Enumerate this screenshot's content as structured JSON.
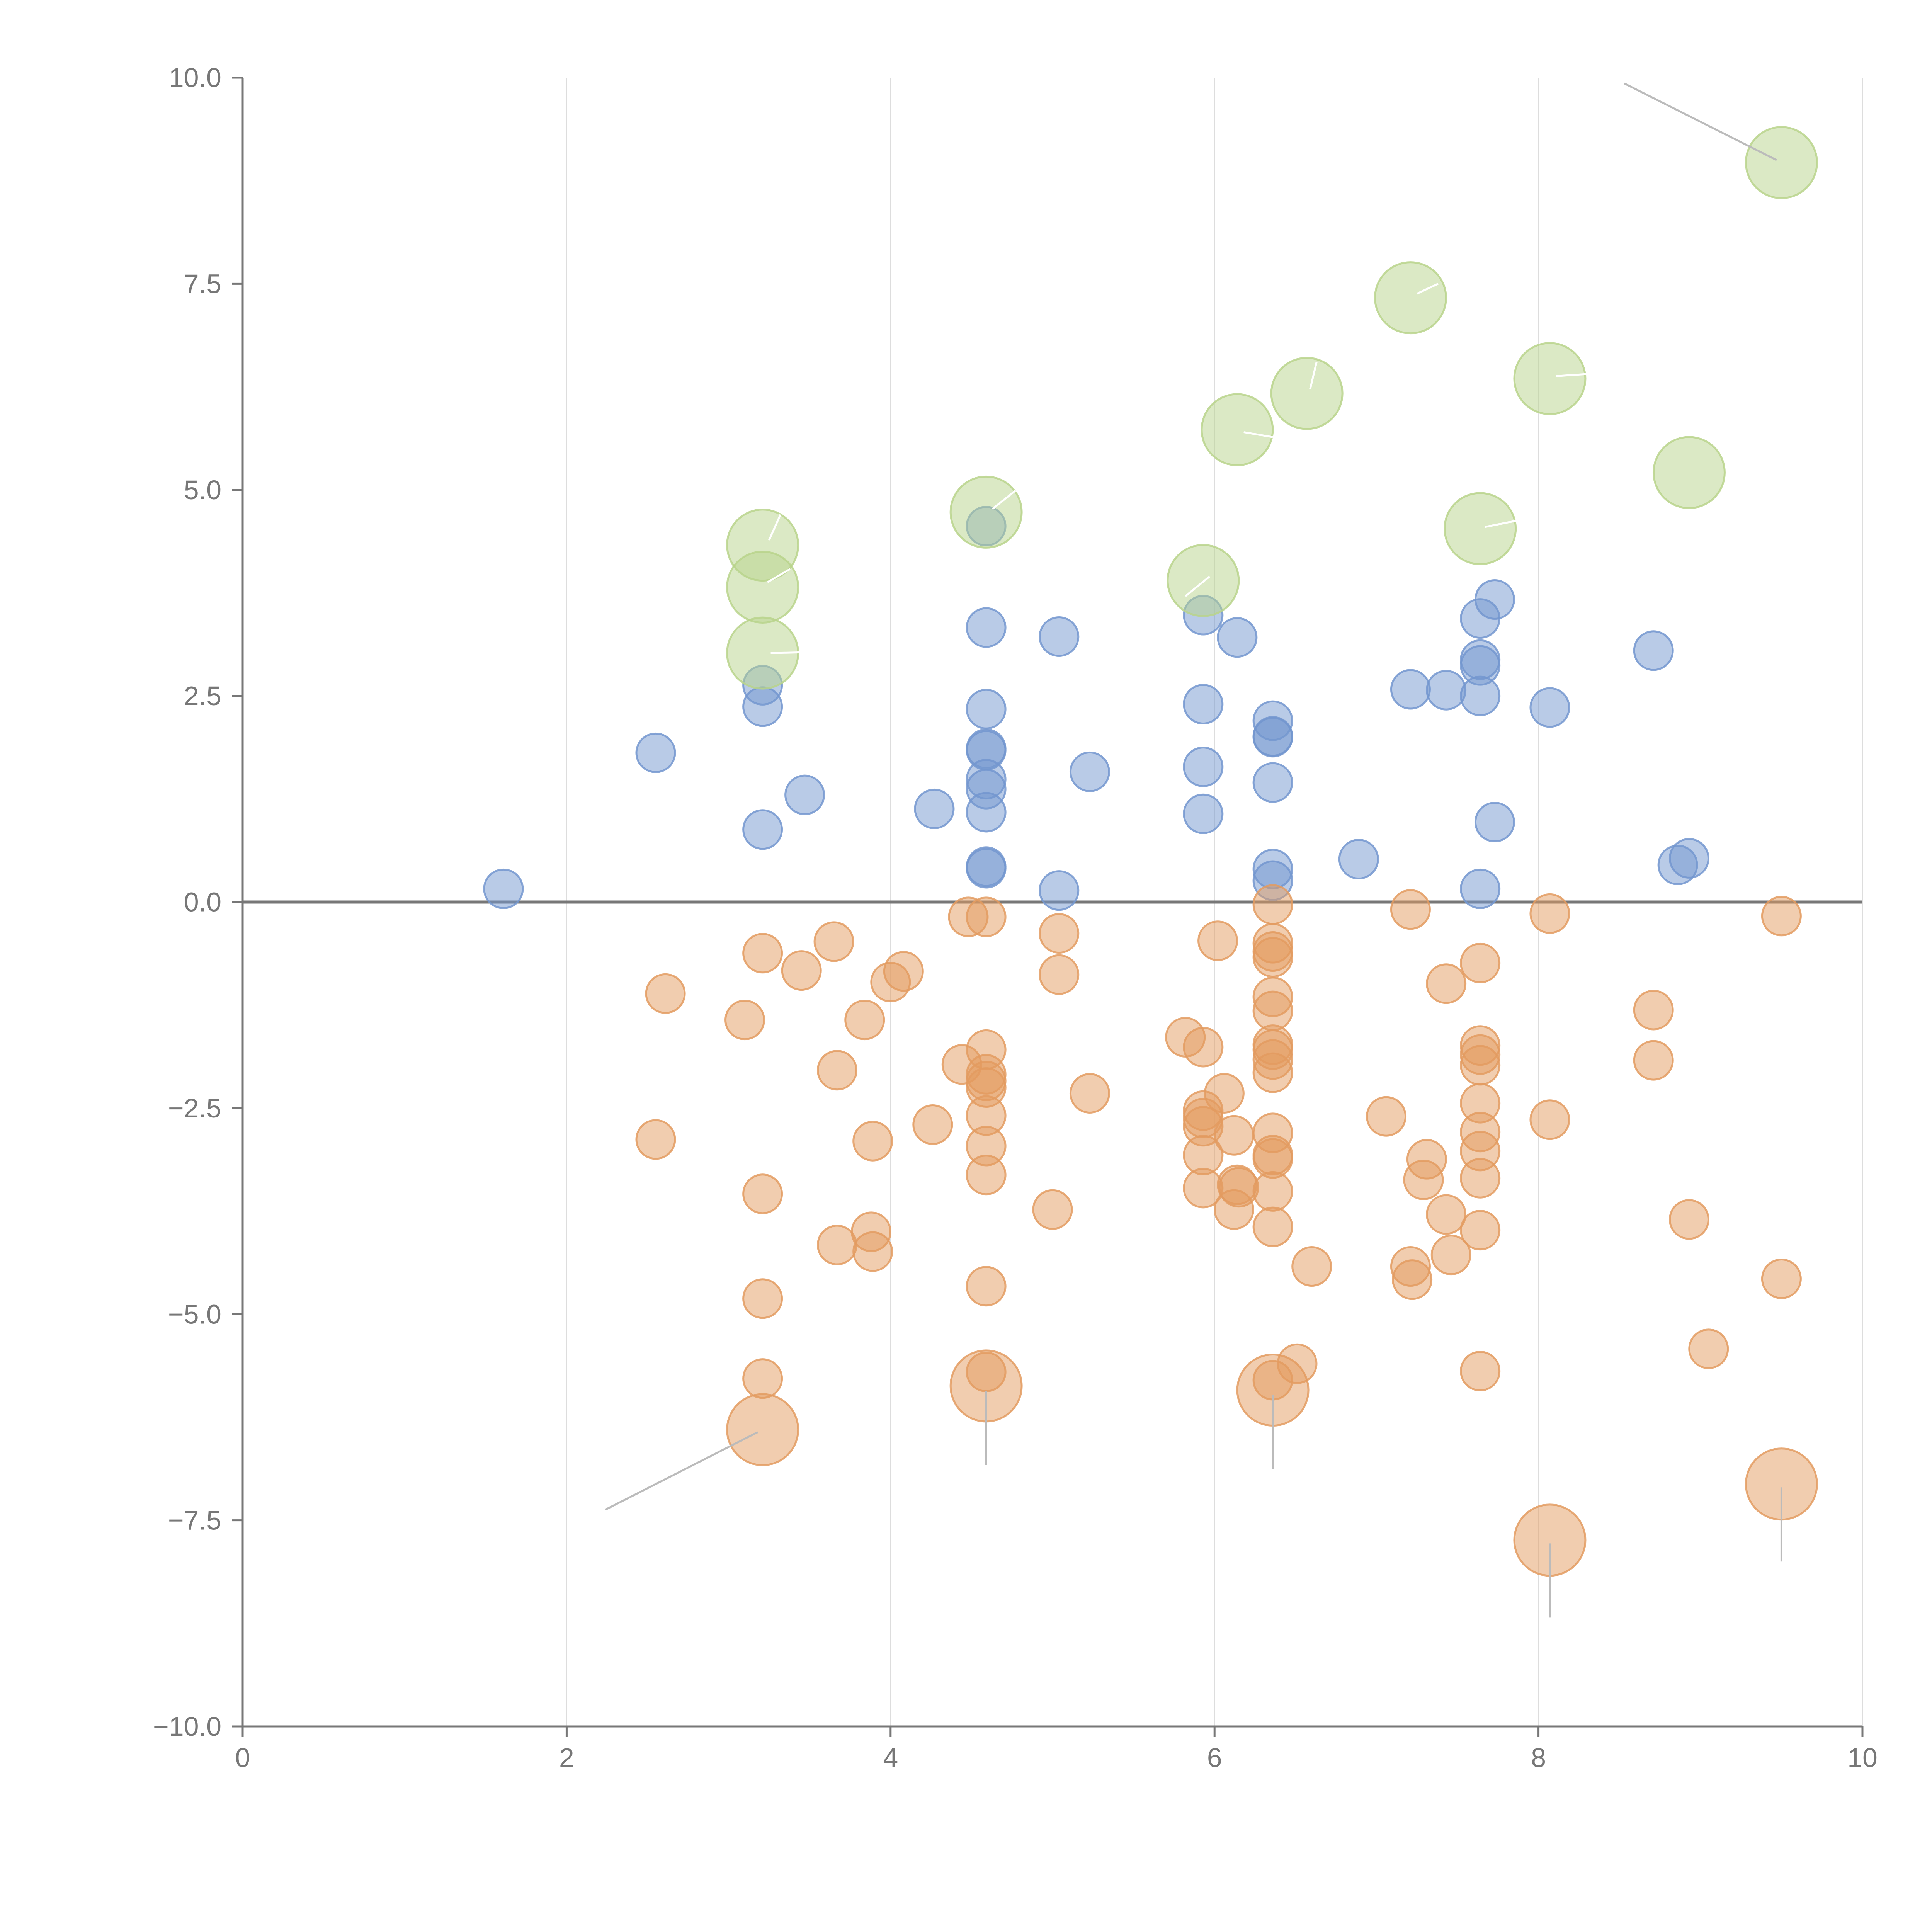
{
  "chart_data": {
    "type": "scatter",
    "title": "",
    "xlabel": "",
    "ylabel": "",
    "xlim": [
      0,
      10
    ],
    "ylim": [
      -10,
      10
    ],
    "x_ticks": [
      0,
      2,
      4,
      6,
      8,
      10
    ],
    "x_tick_labels": [
      "0",
      "2",
      "4",
      "6",
      "8",
      "10"
    ],
    "y_ticks": [
      10,
      7.5,
      5,
      2.5,
      0,
      -2.5,
      -5,
      -7.5,
      -10
    ],
    "y_tick_labels": [
      "10.0",
      "7.5",
      "5.0",
      "2.5",
      "0.0",
      "−2.5",
      "−5.0",
      "−7.5",
      "−10.0"
    ],
    "vertical_grid": true,
    "zero_line": true,
    "legend": "none",
    "series": [
      {
        "name": "blue",
        "color": "#7397cf",
        "size": "small",
        "points": [
          [
            1.61,
            0.16
          ],
          [
            2.55,
            1.81
          ],
          [
            3.21,
            2.63
          ],
          [
            3.21,
            2.37
          ],
          [
            3.21,
            0.88
          ],
          [
            3.47,
            1.3
          ],
          [
            4.27,
            1.13
          ],
          [
            4.59,
            3.33
          ],
          [
            4.59,
            2.34
          ],
          [
            4.59,
            1.86
          ],
          [
            4.59,
            1.84
          ],
          [
            4.59,
            1.49
          ],
          [
            4.59,
            1.37
          ],
          [
            4.59,
            1.09
          ],
          [
            4.59,
            0.43
          ],
          [
            4.59,
            0.41
          ],
          [
            4.59,
            4.56
          ],
          [
            5.04,
            3.22
          ],
          [
            5.04,
            0.14
          ],
          [
            5.23,
            1.58
          ],
          [
            5.93,
            3.48
          ],
          [
            5.93,
            2.4
          ],
          [
            5.93,
            1.64
          ],
          [
            5.93,
            1.07
          ],
          [
            6.14,
            3.21
          ],
          [
            6.36,
            2.2
          ],
          [
            6.36,
            2.01
          ],
          [
            6.36,
            2.0
          ],
          [
            6.36,
            1.45
          ],
          [
            6.36,
            0.4
          ],
          [
            6.36,
            0.26
          ],
          [
            6.89,
            0.52
          ],
          [
            7.21,
            2.58
          ],
          [
            7.43,
            2.57
          ],
          [
            7.64,
            3.44
          ],
          [
            7.64,
            2.94
          ],
          [
            7.64,
            2.87
          ],
          [
            7.64,
            2.5
          ],
          [
            7.64,
            0.16
          ],
          [
            7.73,
            3.67
          ],
          [
            7.73,
            0.97
          ],
          [
            8.07,
            2.36
          ],
          [
            8.71,
            3.05
          ],
          [
            8.86,
            0.45
          ],
          [
            8.93,
            0.53
          ]
        ]
      },
      {
        "name": "orange",
        "color": "#e39b60",
        "size": "small",
        "points": [
          [
            2.55,
            -2.88
          ],
          [
            2.61,
            -1.11
          ],
          [
            3.1,
            -1.43
          ],
          [
            3.21,
            -0.62
          ],
          [
            3.21,
            -3.54
          ],
          [
            3.21,
            -4.81
          ],
          [
            3.21,
            -5.78
          ],
          [
            3.45,
            -0.83
          ],
          [
            3.65,
            -0.48
          ],
          [
            3.67,
            -2.04
          ],
          [
            3.67,
            -4.16
          ],
          [
            3.84,
            -1.43
          ],
          [
            3.88,
            -4.0
          ],
          [
            3.89,
            -2.9
          ],
          [
            3.89,
            -4.24
          ],
          [
            4.0,
            -0.97
          ],
          [
            4.08,
            -0.84
          ],
          [
            4.26,
            -2.7
          ],
          [
            4.44,
            -1.97
          ],
          [
            4.48,
            -0.18
          ],
          [
            4.59,
            -0.18
          ],
          [
            4.59,
            -1.79
          ],
          [
            4.59,
            -2.09
          ],
          [
            4.59,
            -2.17
          ],
          [
            4.59,
            -2.25
          ],
          [
            4.59,
            -2.59
          ],
          [
            4.59,
            -2.96
          ],
          [
            4.59,
            -3.31
          ],
          [
            4.59,
            -4.66
          ],
          [
            4.59,
            -5.7
          ],
          [
            5.0,
            -3.73
          ],
          [
            5.04,
            -0.38
          ],
          [
            5.04,
            -0.88
          ],
          [
            5.23,
            -2.32
          ],
          [
            5.82,
            -1.64
          ],
          [
            5.93,
            -1.76
          ],
          [
            5.93,
            -2.53
          ],
          [
            5.93,
            -2.62
          ],
          [
            5.93,
            -2.72
          ],
          [
            5.93,
            -3.07
          ],
          [
            5.93,
            -3.47
          ],
          [
            6.02,
            -0.47
          ],
          [
            6.06,
            -2.32
          ],
          [
            6.12,
            -2.83
          ],
          [
            6.12,
            -3.73
          ],
          [
            6.14,
            -3.43
          ],
          [
            6.15,
            -3.46
          ],
          [
            6.36,
            -0.03
          ],
          [
            6.36,
            -0.5
          ],
          [
            6.36,
            -0.6
          ],
          [
            6.36,
            -0.67
          ],
          [
            6.36,
            -1.15
          ],
          [
            6.36,
            -1.32
          ],
          [
            6.36,
            -1.73
          ],
          [
            6.36,
            -1.79
          ],
          [
            6.36,
            -1.91
          ],
          [
            6.36,
            -2.07
          ],
          [
            6.36,
            -2.8
          ],
          [
            6.36,
            -3.07
          ],
          [
            6.36,
            -3.11
          ],
          [
            6.36,
            -3.51
          ],
          [
            6.36,
            -3.94
          ],
          [
            6.36,
            -5.8
          ],
          [
            6.51,
            -5.6
          ],
          [
            6.6,
            -4.42
          ],
          [
            7.06,
            -2.6
          ],
          [
            7.21,
            -0.09
          ],
          [
            7.21,
            -4.42
          ],
          [
            7.22,
            -4.58
          ],
          [
            7.29,
            -3.37
          ],
          [
            7.31,
            -3.12
          ],
          [
            7.43,
            -0.99
          ],
          [
            7.43,
            -3.79
          ],
          [
            7.46,
            -4.28
          ],
          [
            7.64,
            -0.74
          ],
          [
            7.64,
            -1.74
          ],
          [
            7.64,
            -1.85
          ],
          [
            7.64,
            -1.98
          ],
          [
            7.64,
            -2.44
          ],
          [
            7.64,
            -2.79
          ],
          [
            7.64,
            -3.02
          ],
          [
            7.64,
            -3.35
          ],
          [
            7.64,
            -3.98
          ],
          [
            7.64,
            -5.69
          ],
          [
            8.07,
            -0.14
          ],
          [
            8.07,
            -2.64
          ],
          [
            8.71,
            -1.31
          ],
          [
            8.71,
            -1.92
          ],
          [
            8.93,
            -3.85
          ],
          [
            9.05,
            -5.42
          ],
          [
            9.5,
            -0.17
          ],
          [
            9.5,
            -4.57
          ]
        ]
      },
      {
        "name": "green-large",
        "color": "#b8d38b",
        "size": "large",
        "points": [
          [
            3.21,
            4.33
          ],
          [
            3.21,
            3.82
          ],
          [
            3.21,
            3.02
          ],
          [
            4.59,
            4.73
          ],
          [
            5.93,
            3.9
          ],
          [
            6.14,
            5.73
          ],
          [
            6.57,
            6.17
          ],
          [
            7.21,
            7.33
          ],
          [
            7.64,
            4.53
          ],
          [
            8.07,
            6.35
          ],
          [
            8.93,
            5.21
          ],
          [
            9.5,
            8.97
          ]
        ]
      },
      {
        "name": "orange-large",
        "color": "#e39b60",
        "size": "large",
        "points": [
          [
            3.21,
            -6.4
          ],
          [
            4.59,
            -5.87
          ],
          [
            6.36,
            -5.92
          ],
          [
            8.07,
            -7.74
          ],
          [
            9.5,
            -7.06
          ]
        ]
      }
    ],
    "annotation_lines": [
      {
        "color": "#bbbbbb",
        "from": [
          8.53,
          9.93
        ],
        "to": [
          9.47,
          9.0
        ]
      },
      {
        "color": "#bbbbbb",
        "from": [
          2.24,
          -7.37
        ],
        "to": [
          3.18,
          -6.43
        ]
      },
      {
        "color": "#bbbbbb",
        "from": [
          4.59,
          -5.93
        ],
        "to": [
          4.59,
          -6.83
        ]
      },
      {
        "color": "#bbbbbb",
        "from": [
          6.36,
          -5.98
        ],
        "to": [
          6.36,
          -6.88
        ]
      },
      {
        "color": "#bbbbbb",
        "from": [
          8.07,
          -7.78
        ],
        "to": [
          8.07,
          -8.68
        ]
      },
      {
        "color": "#bbbbbb",
        "from": [
          9.5,
          -7.1
        ],
        "to": [
          9.5,
          -8.0
        ]
      },
      {
        "color": "#ffffff",
        "from": [
          3.25,
          4.39
        ],
        "to": [
          3.32,
          4.7
        ]
      },
      {
        "color": "#ffffff",
        "from": [
          3.24,
          3.88
        ],
        "to": [
          3.38,
          4.04
        ]
      },
      {
        "color": "#ffffff",
        "from": [
          3.26,
          3.02
        ],
        "to": [
          3.48,
          3.03
        ]
      },
      {
        "color": "#ffffff",
        "from": [
          4.63,
          4.77
        ],
        "to": [
          4.77,
          4.99
        ]
      },
      {
        "color": "#ffffff",
        "from": [
          5.97,
          3.95
        ],
        "to": [
          5.82,
          3.71
        ]
      },
      {
        "color": "#ffffff",
        "from": [
          6.18,
          5.7
        ],
        "to": [
          6.36,
          5.64
        ]
      },
      {
        "color": "#ffffff",
        "from": [
          6.59,
          6.22
        ],
        "to": [
          6.63,
          6.55
        ]
      },
      {
        "color": "#ffffff",
        "from": [
          7.25,
          7.38
        ],
        "to": [
          7.38,
          7.5
        ]
      },
      {
        "color": "#ffffff",
        "from": [
          7.67,
          4.55
        ],
        "to": [
          7.9,
          4.64
        ]
      },
      {
        "color": "#ffffff",
        "from": [
          8.11,
          6.38
        ],
        "to": [
          8.34,
          6.41
        ]
      }
    ]
  }
}
